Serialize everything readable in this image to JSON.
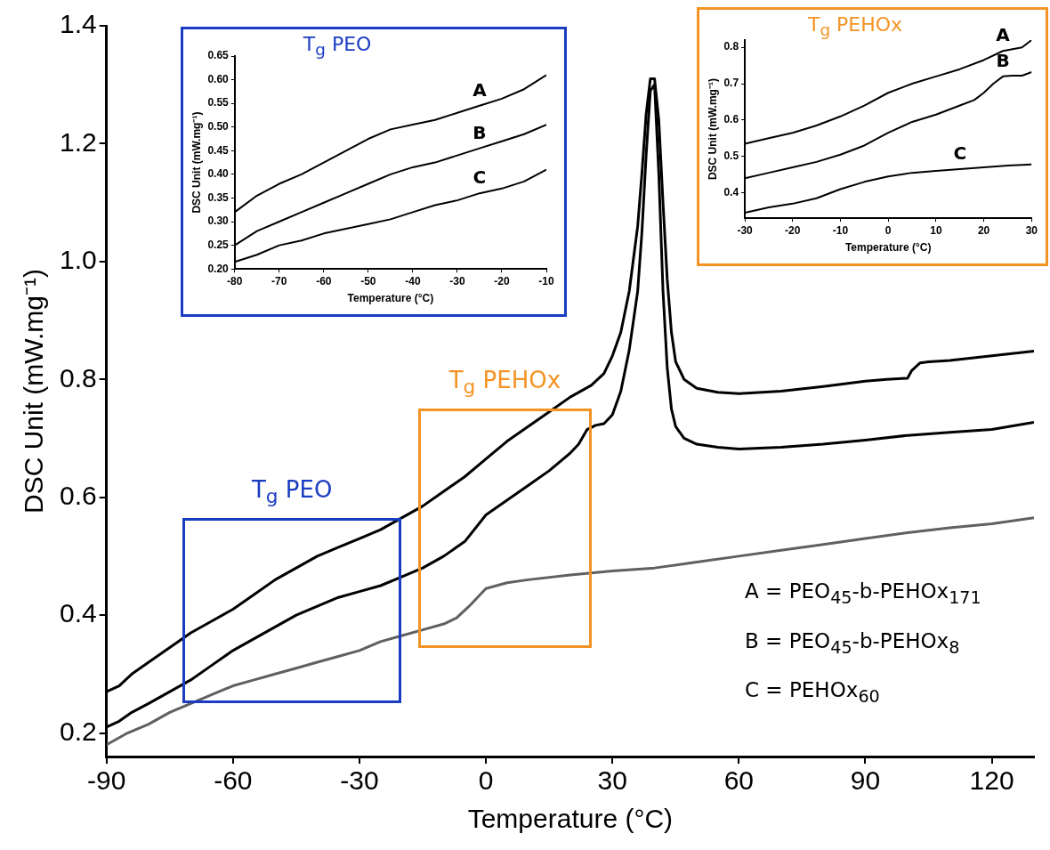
{
  "chart_data": [
    {
      "type": "line",
      "xlabel": "Temperature (°C)",
      "ylabel": "DSC Unit (mW.mg⁻¹)",
      "xlim": [
        -90,
        130
      ],
      "ylim": [
        0.16,
        1.4
      ],
      "xticks": [
        -90,
        -60,
        -30,
        0,
        30,
        60,
        90,
        120
      ],
      "yticks": [
        0.2,
        0.4,
        0.6,
        0.8,
        {
          "value": 1,
          "label": "1.0"
        },
        1.2,
        1.4
      ],
      "grid": false,
      "legend": false,
      "marker": "none",
      "line_style": "solid",
      "annotations": [
        "T$_{g}$ PEO",
        "T$_{g}$ PEHOx",
        "A = PEO$_{45}$-b-PEHOx$_{171}$",
        "B = PEO$_{45}$-b-PEHOx$_{8}$",
        "C = PEHOx$_{60}$"
      ],
      "series": [
        {
          "color": "#000000",
          "x": [
            -90,
            -87,
            -84,
            -80,
            -75,
            -70,
            -65,
            -60,
            -55,
            -50,
            -45,
            -40,
            -35,
            -30,
            -25,
            -20,
            -15,
            -10,
            -5,
            0,
            5,
            10,
            15,
            20,
            25,
            28,
            30,
            32,
            34,
            36,
            37,
            38,
            39,
            40,
            41,
            42,
            43,
            44,
            45,
            47,
            50,
            55,
            60,
            70,
            80,
            90,
            95,
            100,
            101,
            103,
            105,
            110,
            120,
            130
          ],
          "values": [
            0.27,
            0.28,
            0.3,
            0.32,
            0.345,
            0.37,
            0.39,
            0.41,
            0.435,
            0.46,
            0.48,
            0.5,
            0.515,
            0.53,
            0.545,
            0.565,
            0.585,
            0.61,
            0.635,
            0.665,
            0.695,
            0.72,
            0.745,
            0.77,
            0.79,
            0.81,
            0.84,
            0.88,
            0.95,
            1.06,
            1.15,
            1.25,
            1.31,
            1.31,
            1.24,
            1.1,
            0.97,
            0.88,
            0.83,
            0.8,
            0.785,
            0.778,
            0.776,
            0.78,
            0.788,
            0.797,
            0.8,
            0.802,
            0.815,
            0.828,
            0.83,
            0.832,
            0.84,
            0.848
          ]
        },
        {
          "color": "#000000",
          "x": [
            -90,
            -87,
            -84,
            -80,
            -75,
            -70,
            -65,
            -60,
            -55,
            -50,
            -45,
            -40,
            -35,
            -30,
            -25,
            -20,
            -15,
            -10,
            -5,
            0,
            5,
            10,
            15,
            20,
            22,
            24,
            26,
            28,
            30,
            32,
            34,
            36,
            37,
            38,
            39,
            40,
            41,
            42,
            43,
            44,
            45,
            47,
            50,
            55,
            60,
            70,
            80,
            90,
            100,
            110,
            120,
            130
          ],
          "values": [
            0.21,
            0.22,
            0.235,
            0.25,
            0.27,
            0.29,
            0.315,
            0.34,
            0.36,
            0.38,
            0.4,
            0.415,
            0.43,
            0.44,
            0.45,
            0.465,
            0.48,
            0.5,
            0.525,
            0.57,
            0.595,
            0.62,
            0.645,
            0.675,
            0.69,
            0.715,
            0.722,
            0.725,
            0.74,
            0.78,
            0.85,
            0.95,
            1.05,
            1.18,
            1.29,
            1.3,
            1.15,
            0.95,
            0.82,
            0.75,
            0.72,
            0.7,
            0.69,
            0.685,
            0.682,
            0.685,
            0.69,
            0.697,
            0.705,
            0.71,
            0.715,
            0.727
          ]
        },
        {
          "color": "#606060",
          "x": [
            -90,
            -85,
            -80,
            -75,
            -70,
            -65,
            -60,
            -55,
            -50,
            -45,
            -40,
            -35,
            -30,
            -25,
            -20,
            -15,
            -10,
            -7,
            -4,
            -2,
            0,
            5,
            10,
            20,
            30,
            40,
            50,
            60,
            70,
            80,
            90,
            100,
            110,
            120,
            130
          ],
          "values": [
            0.18,
            0.2,
            0.215,
            0.235,
            0.25,
            0.265,
            0.28,
            0.29,
            0.3,
            0.31,
            0.32,
            0.33,
            0.34,
            0.355,
            0.365,
            0.375,
            0.385,
            0.395,
            0.415,
            0.43,
            0.445,
            0.455,
            0.46,
            0.468,
            0.475,
            0.48,
            0.49,
            0.5,
            0.51,
            0.52,
            0.53,
            0.54,
            0.548,
            0.555,
            0.565
          ]
        }
      ]
    },
    {
      "type": "line",
      "title": "T$_{g}$ PEO",
      "xlabel": "Temperature (°C)",
      "ylabel": "DSC Unit (mW.mg⁻¹)",
      "xlim": [
        -80,
        -10
      ],
      "ylim": [
        0.2,
        0.65
      ],
      "xticks": [
        -80,
        -70,
        -60,
        -50,
        -40,
        -30,
        -20,
        -10
      ],
      "yticks": [
        {
          "value": 0.2,
          "label": "0.20"
        },
        {
          "value": 0.25,
          "label": "0.25"
        },
        {
          "value": 0.3,
          "label": "0.30"
        },
        {
          "value": 0.35,
          "label": "0.35"
        },
        {
          "value": 0.4,
          "label": "0.40"
        },
        {
          "value": 0.45,
          "label": "0.45"
        },
        {
          "value": 0.5,
          "label": "0.50"
        },
        {
          "value": 0.55,
          "label": "0.55"
        },
        {
          "value": 0.6,
          "label": "0.60"
        },
        {
          "value": 0.65,
          "label": "0.65"
        }
      ],
      "grid": false,
      "legend": false,
      "marker": "none",
      "line_style": "solid",
      "series": [
        {
          "name": "A",
          "color": "#000000",
          "x": [
            -80,
            -75,
            -70,
            -65,
            -60,
            -55,
            -50,
            -45,
            -40,
            -35,
            -30,
            -25,
            -20,
            -15,
            -10
          ],
          "values": [
            0.32,
            0.355,
            0.38,
            0.4,
            0.425,
            0.45,
            0.475,
            0.495,
            0.505,
            0.515,
            0.53,
            0.545,
            0.56,
            0.58,
            0.61
          ]
        },
        {
          "name": "B",
          "color": "#000000",
          "x": [
            -80,
            -75,
            -70,
            -65,
            -60,
            -55,
            -50,
            -45,
            -40,
            -35,
            -30,
            -25,
            -20,
            -15,
            -10
          ],
          "values": [
            0.25,
            0.28,
            0.3,
            0.32,
            0.34,
            0.36,
            0.38,
            0.4,
            0.415,
            0.425,
            0.44,
            0.455,
            0.47,
            0.485,
            0.505
          ]
        },
        {
          "name": "C",
          "color": "#000000",
          "x": [
            -80,
            -75,
            -70,
            -65,
            -60,
            -55,
            -50,
            -45,
            -40,
            -35,
            -30,
            -25,
            -20,
            -15,
            -10
          ],
          "values": [
            0.215,
            0.23,
            0.25,
            0.26,
            0.275,
            0.285,
            0.295,
            0.305,
            0.32,
            0.335,
            0.345,
            0.36,
            0.37,
            0.385,
            0.41
          ]
        }
      ]
    },
    {
      "type": "line",
      "title": "T$_{g}$ PEHOx",
      "xlabel": "Temperature (°C)",
      "ylabel": "DSC Unit (mW.mg⁻¹)",
      "xlim": [
        -30,
        30
      ],
      "ylim": [
        0.33,
        0.82
      ],
      "xticks": [
        -30,
        -20,
        -10,
        0,
        10,
        20,
        30
      ],
      "yticks": [
        0.4,
        0.5,
        0.6,
        0.7,
        0.8
      ],
      "grid": false,
      "legend": false,
      "marker": "none",
      "line_style": "solid",
      "series": [
        {
          "name": "A",
          "color": "#000000",
          "x": [
            -30,
            -25,
            -20,
            -15,
            -10,
            -5,
            0,
            5,
            10,
            15,
            20,
            24,
            26,
            28,
            30
          ],
          "values": [
            0.535,
            0.55,
            0.565,
            0.585,
            0.61,
            0.64,
            0.675,
            0.7,
            0.72,
            0.74,
            0.765,
            0.79,
            0.795,
            0.8,
            0.82
          ]
        },
        {
          "name": "B",
          "color": "#000000",
          "x": [
            -30,
            -25,
            -20,
            -15,
            -10,
            -5,
            0,
            5,
            10,
            15,
            18,
            20,
            22,
            24,
            26,
            28,
            30
          ],
          "values": [
            0.44,
            0.455,
            0.47,
            0.485,
            0.505,
            0.53,
            0.565,
            0.595,
            0.615,
            0.64,
            0.655,
            0.675,
            0.7,
            0.72,
            0.722,
            0.722,
            0.732
          ]
        },
        {
          "name": "C",
          "color": "#000000",
          "x": [
            -30,
            -25,
            -20,
            -15,
            -10,
            -5,
            0,
            5,
            10,
            15,
            20,
            25,
            30
          ],
          "values": [
            0.345,
            0.36,
            0.37,
            0.385,
            0.41,
            0.43,
            0.445,
            0.455,
            0.46,
            0.465,
            0.47,
            0.475,
            0.478
          ]
        }
      ]
    }
  ]
}
